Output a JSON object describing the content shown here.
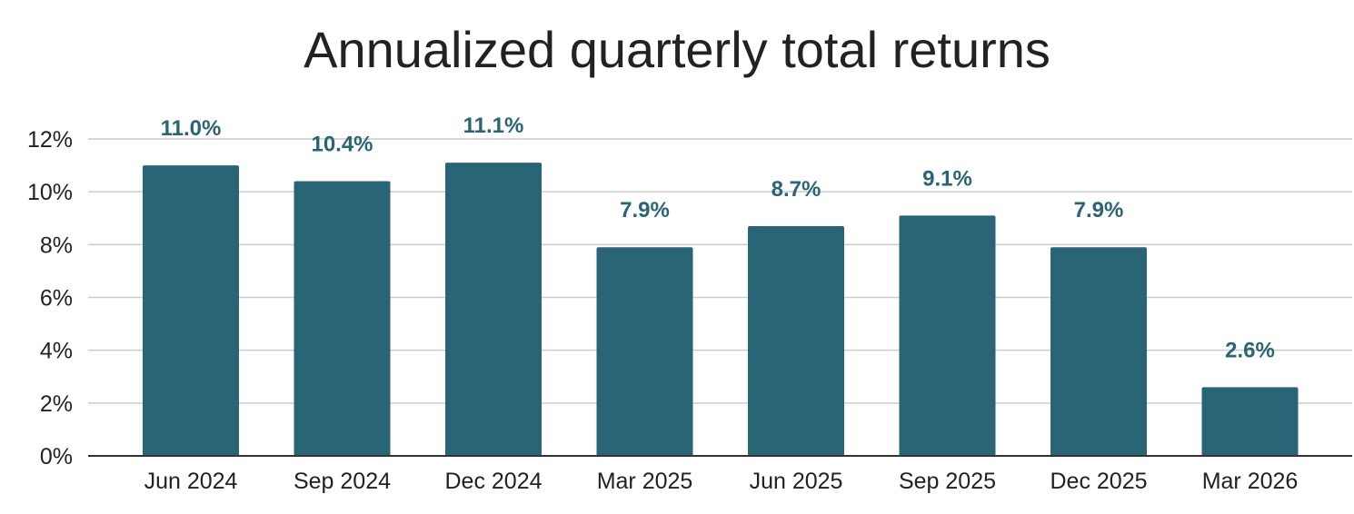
{
  "chart_data": {
    "type": "bar",
    "title": "Annualized quarterly total returns",
    "categories": [
      "Jun 2024",
      "Sep 2024",
      "Dec 2024",
      "Mar 2025",
      "Jun 2025",
      "Sep 2025",
      "Dec 2025",
      "Mar 2026"
    ],
    "values": [
      11.0,
      10.4,
      11.1,
      7.9,
      8.7,
      9.1,
      7.9,
      2.6
    ],
    "data_labels": [
      "11.0%",
      "10.4%",
      "11.1%",
      "7.9%",
      "8.7%",
      "9.1%",
      "7.9%",
      "2.6%"
    ],
    "ylim": [
      0,
      12
    ],
    "yticks": [
      0,
      2,
      4,
      6,
      8,
      10,
      12
    ],
    "ytick_labels": [
      "0%",
      "2%",
      "4%",
      "6%",
      "8%",
      "10%",
      "12%"
    ],
    "xlabel": "",
    "ylabel": "",
    "grid": true,
    "legend": "none",
    "colors": {
      "bar": "#2a6477",
      "label": "#2a6477",
      "grid": "#cccccc",
      "axis": "#333333"
    }
  }
}
